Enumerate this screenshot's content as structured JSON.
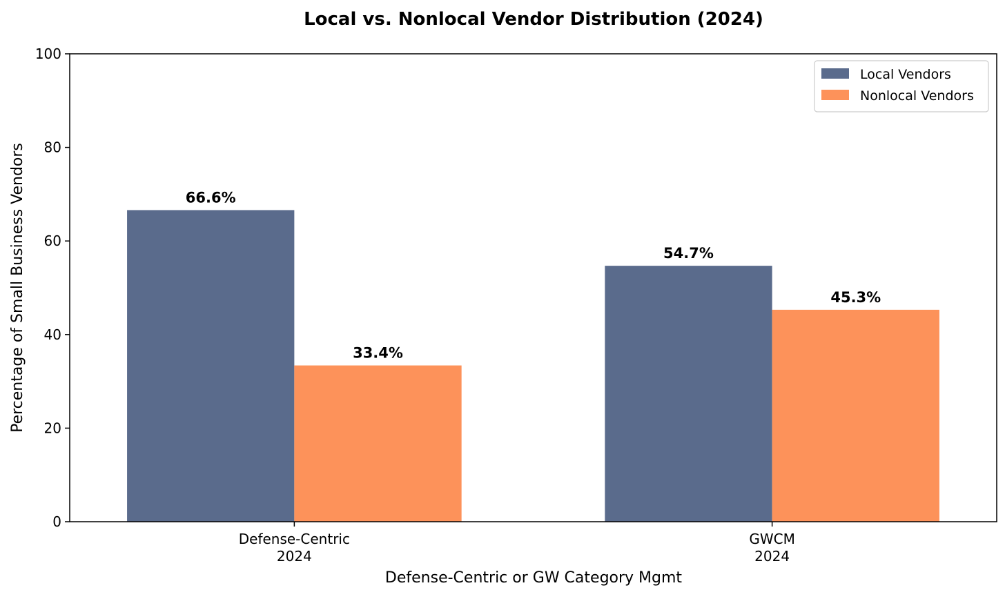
{
  "chart_data": {
    "type": "bar",
    "title": "Local vs. Nonlocal Vendor Distribution (2024)",
    "xlabel": "Defense-Centric or GW Category Mgmt",
    "ylabel": "Percentage of Small Business Vendors",
    "categories": [
      [
        "Defense-Centric",
        "2024"
      ],
      [
        "GWCM",
        "2024"
      ]
    ],
    "series": [
      {
        "name": "Local Vendors",
        "color": "#5a6b8c",
        "values": [
          66.6,
          54.7
        ],
        "labels": [
          "66.6%",
          "54.7%"
        ]
      },
      {
        "name": "Nonlocal Vendors",
        "color": "#fd925a",
        "values": [
          33.4,
          45.3
        ],
        "labels": [
          "33.4%",
          "45.3%"
        ]
      }
    ],
    "ylim": [
      0,
      100
    ],
    "yticks": [
      0,
      20,
      40,
      60,
      80,
      100
    ],
    "grid": false,
    "legend": "top-right"
  }
}
